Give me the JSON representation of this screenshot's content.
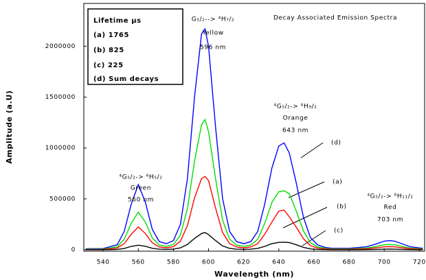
{
  "chart_data": {
    "type": "line",
    "title": "Decay Associated Emission Spectra",
    "x_label": "Wavelength (nm)",
    "y_label": "Amplitude (a.U)",
    "legend_title": "Lifetime µs",
    "legend_entries": [
      "(a) 1765",
      "(b) 825",
      "(c) 225",
      "(d) Sum decays"
    ],
    "annotations": [
      [
        "⁴G₅/₂-> ⁶H₅/₂",
        "Green",
        "560 nm"
      ],
      [
        "G₅/₂--> ⁴H₇/₂",
        "Yellow",
        "596 nm"
      ],
      [
        "⁴G₅/₂-> ⁶H₉/₂",
        "Orange",
        "643 nm"
      ],
      [
        "⁴G₅/₂-> ⁶H₁₁/₂",
        "Red",
        "703 nm"
      ]
    ],
    "x": [
      530,
      540,
      548,
      552,
      556,
      560,
      564,
      568,
      572,
      576,
      580,
      584,
      588,
      592,
      596,
      598,
      600,
      604,
      608,
      612,
      616,
      620,
      624,
      628,
      632,
      636,
      640,
      643,
      646,
      650,
      654,
      658,
      662,
      666,
      670,
      680,
      690,
      695,
      700,
      703,
      706,
      710,
      715,
      722
    ],
    "series": [
      {
        "name": "(d)",
        "color": "#0000ff",
        "values": [
          10000,
          12000,
          50000,
          180000,
          450000,
          640000,
          470000,
          200000,
          80000,
          60000,
          90000,
          250000,
          700000,
          1500000,
          2120000,
          2170000,
          2000000,
          1200000,
          500000,
          180000,
          80000,
          60000,
          80000,
          180000,
          450000,
          800000,
          1020000,
          1050000,
          950000,
          650000,
          320000,
          120000,
          50000,
          25000,
          15000,
          15000,
          30000,
          55000,
          85000,
          90000,
          85000,
          60000,
          30000,
          15000
        ]
      },
      {
        "name": "(a)",
        "color": "#00dd00",
        "values": [
          6000,
          7000,
          29000,
          104000,
          261000,
          371000,
          273000,
          116000,
          46000,
          35000,
          52000,
          145000,
          406000,
          870000,
          1230000,
          1280000,
          1160000,
          696000,
          290000,
          104000,
          46000,
          35000,
          46000,
          104000,
          261000,
          464000,
          570000,
          580000,
          551000,
          377000,
          186000,
          70000,
          29000,
          15000,
          9000,
          9000,
          17000,
          32000,
          49000,
          52000,
          49000,
          35000,
          17000,
          9000
        ]
      },
      {
        "name": "(b)",
        "color": "#ff0000",
        "values": [
          3000,
          4000,
          17000,
          61000,
          153000,
          225000,
          160000,
          68000,
          27000,
          20000,
          31000,
          85000,
          238000,
          510000,
          700000,
          720000,
          680000,
          408000,
          170000,
          61000,
          27000,
          20000,
          27000,
          61000,
          153000,
          272000,
          380000,
          390000,
          323000,
          221000,
          109000,
          41000,
          17000,
          9000,
          5000,
          5000,
          10000,
          19000,
          29000,
          31000,
          29000,
          20000,
          10000,
          5000
        ]
      },
      {
        "name": "(c)",
        "color": "#000000",
        "values": [
          1000,
          1000,
          4000,
          13000,
          34000,
          45000,
          35000,
          15000,
          6000,
          5000,
          7000,
          19000,
          53000,
          112000,
          160000,
          170000,
          150000,
          90000,
          38000,
          14000,
          6000,
          5000,
          6000,
          14000,
          34000,
          60000,
          73000,
          75000,
          71000,
          49000,
          24000,
          9000,
          4000,
          2000,
          1000,
          1000,
          2000,
          4000,
          6000,
          7000,
          6000,
          4000,
          2000,
          1000
        ]
      }
    ],
    "xlim": [
      529,
      723
    ],
    "ylim": [
      0,
      2400000
    ],
    "xticks": [
      540,
      560,
      580,
      600,
      620,
      640,
      660,
      680,
      700,
      720
    ],
    "yticks": [
      0,
      500000,
      1000000,
      1500000,
      2000000
    ],
    "grid": false
  }
}
